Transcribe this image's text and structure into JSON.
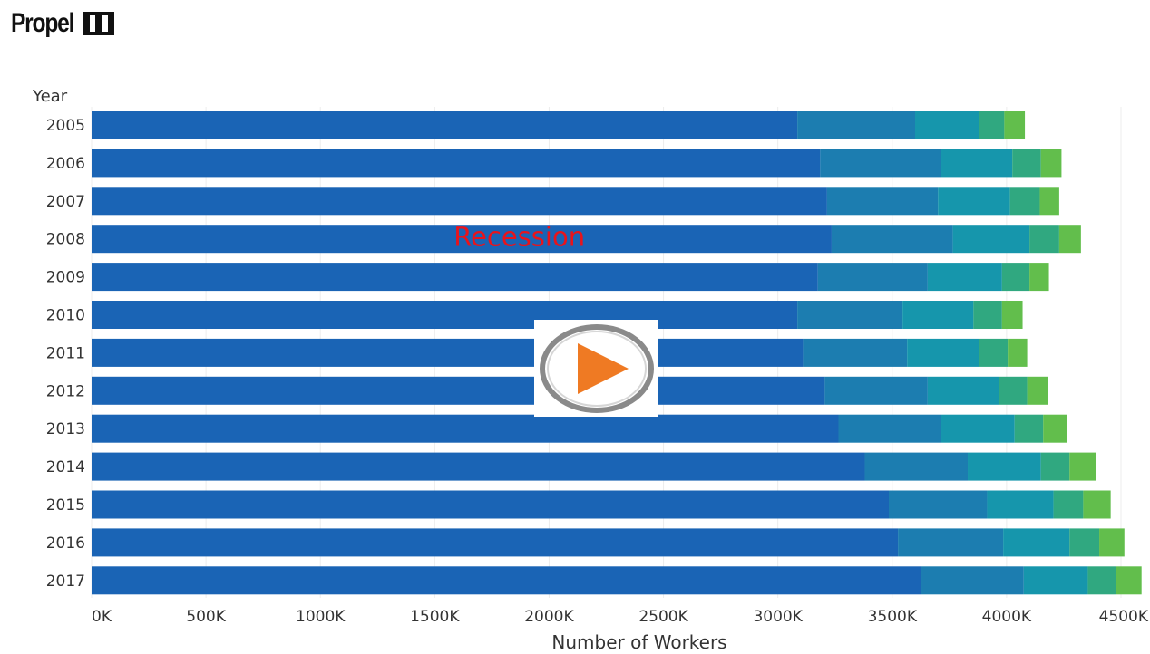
{
  "brand": {
    "name": "Propel"
  },
  "chart_data": {
    "type": "bar",
    "orientation": "horizontal",
    "stacked": true,
    "title": "",
    "ylabel": "Year",
    "xlabel": "Number of Workers",
    "categories": [
      "2005",
      "2006",
      "2007",
      "2008",
      "2009",
      "2010",
      "2011",
      "2012",
      "2013",
      "2014",
      "2015",
      "2016",
      "2017"
    ],
    "xlim": [
      0,
      4500000
    ],
    "x_ticks": [
      0,
      500000,
      1000000,
      1500000,
      2000000,
      2500000,
      3000000,
      3500000,
      4000000,
      4500000
    ],
    "x_tick_labels": [
      "0K",
      "500K",
      "1000K",
      "1500K",
      "2000K",
      "2500K",
      "3000K",
      "3500K",
      "4000K",
      "4500K"
    ],
    "series": [
      {
        "color": "#1a64b5",
        "values": [
          3085000,
          3185000,
          3215000,
          3235000,
          3175000,
          3085000,
          3110000,
          3205000,
          3265000,
          3380000,
          3485000,
          3525000,
          3625000
        ]
      },
      {
        "color": "#1c7db0",
        "values": [
          515000,
          530000,
          485000,
          530000,
          480000,
          460000,
          455000,
          450000,
          450000,
          450000,
          430000,
          460000,
          450000
        ]
      },
      {
        "color": "#1696ac",
        "values": [
          280000,
          310000,
          315000,
          335000,
          325000,
          310000,
          315000,
          310000,
          320000,
          320000,
          290000,
          290000,
          280000
        ]
      },
      {
        "color": "#30a880",
        "values": [
          110000,
          125000,
          130000,
          130000,
          120000,
          125000,
          125000,
          125000,
          125000,
          125000,
          130000,
          130000,
          125000
        ]
      },
      {
        "color": "#62be4c",
        "values": [
          90000,
          90000,
          85000,
          95000,
          85000,
          90000,
          85000,
          90000,
          105000,
          115000,
          120000,
          110000,
          110000
        ]
      }
    ],
    "annotations": [
      {
        "text": "Recession",
        "category": "2008",
        "x": 1870000
      }
    ],
    "grid": true
  },
  "ui": {
    "play_button": {
      "icon": "play-icon"
    }
  }
}
